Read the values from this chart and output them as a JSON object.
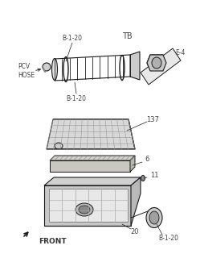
{
  "bg_color": "#ffffff",
  "line_color": "#1a1a1a",
  "label_color": "#444444",
  "labels": {
    "B1_20_top": "B-1-20",
    "TB": "TB",
    "PCV_HOSE": "PCV\nHOSE",
    "E4": "E-4",
    "B1_20_mid": "B-1-20",
    "num_137": "137",
    "num_6": "6",
    "num_11": "11",
    "num_20": "20",
    "B1_20_bot": "B-1-20",
    "FRONT": "FRONT"
  },
  "figsize": [
    2.49,
    3.2
  ],
  "dpi": 100
}
